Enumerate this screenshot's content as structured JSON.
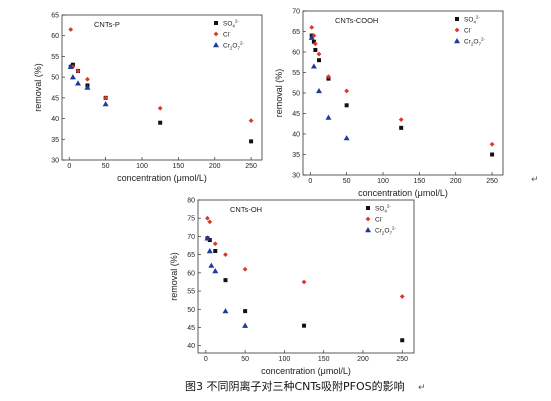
{
  "caption": "图3 不同阴离子对三种CNTs吸附PFOS的影响",
  "return_mark": "↵",
  "colors": {
    "so4": "#111111",
    "cl": "#d83a2a",
    "cr2o7": "#1e3a9a",
    "axis": "#333333"
  },
  "legend_labels": {
    "so4": {
      "base": "SO",
      "sub": "4",
      "sup": "2-"
    },
    "cl": {
      "base": "Cl",
      "sub": "",
      "sup": "-"
    },
    "cr2o7": {
      "base": "Cr",
      "sub": "2",
      "mid": "O",
      "sub2": "7",
      "sup": "2-"
    }
  },
  "chart_data": [
    {
      "type": "scatter",
      "panel_label": "CNTs-P",
      "xlabel": "concentration (μmol/L)",
      "ylabel": "removal (%)",
      "xlim": [
        -10,
        265
      ],
      "ylim": [
        30,
        65
      ],
      "xticks": [
        0,
        50,
        100,
        150,
        200,
        250
      ],
      "yticks": [
        30,
        35,
        40,
        45,
        50,
        55,
        60,
        65
      ],
      "legend_position": "top-right",
      "series": [
        {
          "key": "so4",
          "marker": "square",
          "x": [
            2,
            5,
            12,
            25,
            50,
            125,
            250
          ],
          "y": [
            52.5,
            53.0,
            51.5,
            48.0,
            45.0,
            39.0,
            34.5
          ]
        },
        {
          "key": "cl",
          "marker": "diamond",
          "x": [
            2,
            5,
            12,
            25,
            50,
            125,
            250
          ],
          "y": [
            61.5,
            52.5,
            51.5,
            49.5,
            45.0,
            42.5,
            39.5
          ]
        },
        {
          "key": "cr2o7",
          "marker": "triangle",
          "x": [
            2,
            5,
            12,
            25,
            50
          ],
          "y": [
            52.5,
            50.0,
            48.5,
            47.5,
            43.5
          ]
        }
      ]
    },
    {
      "type": "scatter",
      "panel_label": "CNTs-COOH",
      "xlabel": "concentration (μmol/L)",
      "ylabel": "removal (%)",
      "xlim": [
        -10,
        265
      ],
      "ylim": [
        30,
        70
      ],
      "xticks": [
        0,
        50,
        100,
        150,
        200,
        250
      ],
      "yticks": [
        30,
        35,
        40,
        45,
        50,
        55,
        60,
        65,
        70
      ],
      "legend_position": "top-right",
      "series": [
        {
          "key": "so4",
          "marker": "square",
          "x": [
            2,
            5,
            7,
            12,
            25,
            50,
            125,
            250
          ],
          "y": [
            64.0,
            62.5,
            60.5,
            58.0,
            53.5,
            47.0,
            41.5,
            35.0
          ]
        },
        {
          "key": "cl",
          "marker": "diamond",
          "x": [
            2,
            5,
            7,
            12,
            25,
            50,
            125,
            250
          ],
          "y": [
            66.0,
            64.0,
            62.0,
            59.5,
            54.0,
            50.5,
            43.5,
            37.5
          ]
        },
        {
          "key": "cr2o7",
          "marker": "triangle",
          "x": [
            2,
            5,
            12,
            25,
            50
          ],
          "y": [
            63.5,
            56.5,
            50.5,
            44.0,
            39.0
          ]
        }
      ]
    },
    {
      "type": "scatter",
      "panel_label": "CNTs-OH",
      "xlabel": "concentration (μmol/L)",
      "ylabel": "removal (%)",
      "xlim": [
        -10,
        265
      ],
      "ylim": [
        38,
        80
      ],
      "xticks": [
        0,
        50,
        100,
        150,
        200,
        250
      ],
      "yticks": [
        40,
        45,
        50,
        55,
        60,
        65,
        70,
        75,
        80
      ],
      "legend_position": "top-right",
      "series": [
        {
          "key": "so4",
          "marker": "square",
          "x": [
            2,
            5,
            12,
            25,
            50,
            125,
            250
          ],
          "y": [
            69.5,
            69.0,
            66.0,
            58.0,
            49.5,
            45.5,
            41.5
          ]
        },
        {
          "key": "cl",
          "marker": "diamond",
          "x": [
            2,
            5,
            12,
            25,
            50,
            125,
            250
          ],
          "y": [
            75.0,
            74.0,
            68.0,
            65.0,
            61.0,
            57.5,
            53.5
          ]
        },
        {
          "key": "cr2o7",
          "marker": "triangle",
          "x": [
            2,
            5,
            7,
            12,
            25,
            50
          ],
          "y": [
            69.5,
            66.0,
            62.0,
            60.5,
            49.5,
            45.5
          ]
        }
      ]
    }
  ]
}
